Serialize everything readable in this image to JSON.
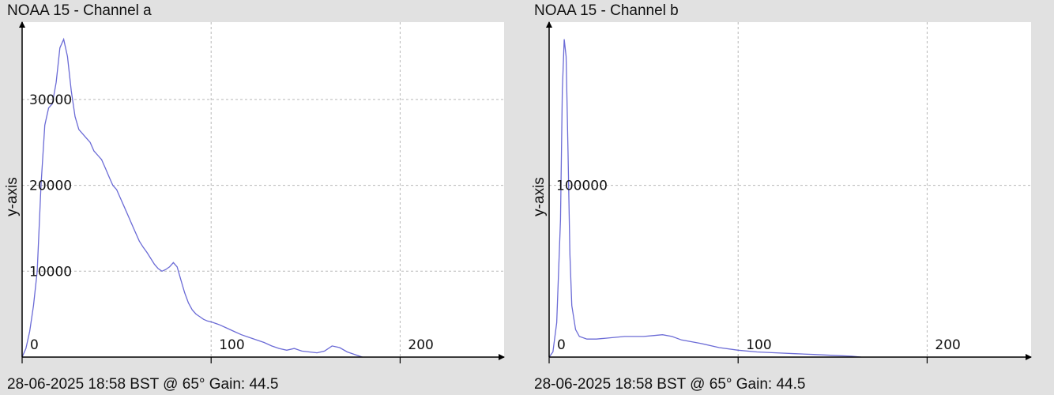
{
  "charts": [
    {
      "title": "NOAA 15 - Channel a",
      "footer": "28-06-2025 18:58 BST @ 65° Gain: 44.5",
      "ylabel": "y-axis"
    },
    {
      "title": "NOAA 15 - Channel b",
      "footer": "28-06-2025 18:58 BST @ 65° Gain: 44.5",
      "ylabel": "y-axis"
    }
  ],
  "colors": {
    "line": "#6b6bd6",
    "grid": "#b8b8b8",
    "axis": "#000000",
    "plot_bg": "#ffffff",
    "page_bg": "#e1e1e1"
  },
  "chart_data": [
    {
      "type": "line",
      "title": "NOAA 15 - Channel a",
      "xlabel": "",
      "ylabel": "y-axis",
      "xlim": [
        0,
        255
      ],
      "ylim": [
        0,
        39000
      ],
      "grid": true,
      "xticks": [
        0,
        100,
        200
      ],
      "yticks": [
        10000,
        20000,
        30000
      ],
      "series": [
        {
          "x": [
            0,
            2,
            4,
            6,
            8,
            10,
            12,
            14,
            16,
            18,
            20,
            22,
            24,
            26,
            28,
            30,
            32,
            34,
            36,
            38,
            40,
            42,
            44,
            46,
            48,
            50,
            52,
            54,
            56,
            58,
            60,
            62,
            64,
            66,
            68,
            70,
            72,
            74,
            76,
            78,
            80,
            82,
            84,
            86,
            88,
            90,
            92,
            94,
            96,
            98,
            100,
            104,
            108,
            112,
            116,
            120,
            124,
            128,
            132,
            136,
            140,
            144,
            148,
            152,
            156,
            160,
            164,
            168,
            172,
            176,
            180
          ],
          "values": [
            0,
            1000,
            3000,
            6000,
            10000,
            20000,
            27000,
            29000,
            29500,
            32000,
            36000,
            37000,
            35000,
            31000,
            28000,
            26500,
            26000,
            25500,
            25000,
            24000,
            23500,
            23000,
            22000,
            21000,
            20000,
            19500,
            18500,
            17500,
            16500,
            15500,
            14500,
            13500,
            12800,
            12200,
            11500,
            10800,
            10300,
            10000,
            10200,
            10500,
            11000,
            10500,
            9000,
            7500,
            6300,
            5500,
            5000,
            4700,
            4400,
            4200,
            4100,
            3800,
            3400,
            3000,
            2600,
            2300,
            2000,
            1700,
            1300,
            1000,
            800,
            1000,
            700,
            600,
            500,
            700,
            1300,
            1100,
            600,
            300,
            0
          ]
        }
      ]
    },
    {
      "type": "line",
      "title": "NOAA 15 - Channel b",
      "xlabel": "",
      "ylabel": "y-axis",
      "xlim": [
        0,
        255
      ],
      "ylim": [
        0,
        195000
      ],
      "grid": true,
      "xticks": [
        0,
        100,
        200
      ],
      "yticks": [
        100000
      ],
      "series": [
        {
          "x": [
            0,
            2,
            4,
            6,
            7,
            8,
            9,
            10,
            11,
            12,
            14,
            16,
            20,
            25,
            30,
            40,
            50,
            55,
            60,
            65,
            70,
            80,
            90,
            100,
            110,
            120,
            130,
            140,
            150,
            160,
            165
          ],
          "values": [
            0,
            3000,
            20000,
            80000,
            155000,
            185000,
            175000,
            120000,
            60000,
            30000,
            16000,
            12000,
            10500,
            10500,
            11000,
            12000,
            12000,
            12500,
            13000,
            12000,
            10000,
            8000,
            5500,
            4000,
            3000,
            2500,
            2000,
            1500,
            1000,
            500,
            0
          ]
        }
      ]
    }
  ]
}
